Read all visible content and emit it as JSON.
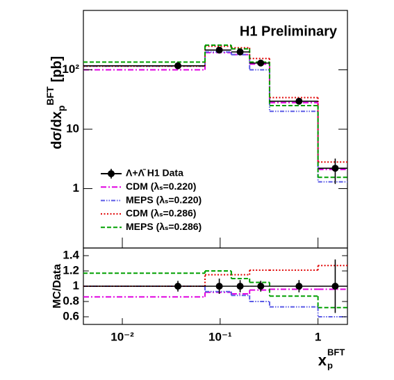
{
  "chart_data": [
    {
      "type": "step",
      "annotation": "H1 Preliminary",
      "ylabel": {
        "main": "dσ/dx",
        "sub": "p",
        "sup": "BFT",
        "unit": "[pb]"
      },
      "xscale": "log",
      "yscale": "log",
      "xlim": [
        0.004,
        2
      ],
      "ylim": [
        0.1,
        1000
      ],
      "yticks": [
        1,
        10,
        {
          "value": 100,
          "label": "10²"
        }
      ],
      "bins": [
        0.004,
        0.07,
        0.13,
        0.2,
        0.32,
        1,
        2
      ],
      "x": [
        0.037,
        0.098,
        0.16,
        0.26,
        0.64,
        1.5
      ],
      "legend": "lower left",
      "series": [
        {
          "name": "Λ+Λ̄ H1 Data",
          "color": "#000000",
          "style": "data",
          "values": [
            117,
            215,
            200,
            130,
            29.6,
            2.2
          ],
          "errors": [
            8,
            25,
            20,
            12,
            3,
            1
          ]
        },
        {
          "name": "CDM (λₛ=0.220)",
          "color": "#e000e0",
          "style": "dashdot",
          "values": [
            100,
            195,
            180,
            125,
            28,
            2.1
          ]
        },
        {
          "name": "MEPS (λₛ=0.220)",
          "color": "#5a5ae6",
          "style": "dashdotdot",
          "values": [
            115,
            200,
            180,
            100,
            20,
            1.3
          ]
        },
        {
          "name": "CDM (λₛ=0.286)",
          "color": "#e00000",
          "style": "dotted",
          "values": [
            115,
            250,
            235,
            155,
            34,
            2.8
          ]
        },
        {
          "name": "MEPS (λₛ=0.286)",
          "color": "#00a000",
          "style": "dashed",
          "values": [
            135,
            260,
            225,
            135,
            25,
            1.55
          ]
        }
      ]
    },
    {
      "type": "step",
      "ylabel": "MC/Data",
      "xlabel": {
        "main": "x",
        "sub": "p",
        "sup": "BFT"
      },
      "xscale": "log",
      "xlim": [
        0.004,
        2
      ],
      "ylim": [
        0.5,
        1.5
      ],
      "xticks": [
        {
          "value": 0.01,
          "label": "10⁻²"
        },
        {
          "value": 0.1,
          "label": "10⁻¹"
        },
        1
      ],
      "yticks": [
        0.6,
        0.8,
        1,
        1.2,
        1.4
      ],
      "bins": [
        0.004,
        0.07,
        0.13,
        0.2,
        0.32,
        1,
        2
      ],
      "x": [
        0.037,
        0.098,
        0.16,
        0.26,
        0.64,
        1.5
      ],
      "series": [
        {
          "color": "#000000",
          "style": "data",
          "values": [
            1,
            1,
            1,
            1,
            1,
            1
          ],
          "errors": [
            0.07,
            0.1,
            0.08,
            0.07,
            0.08,
            0.35
          ]
        },
        {
          "color": "#e000e0",
          "style": "dashdot",
          "values": [
            0.86,
            0.92,
            0.9,
            0.95,
            0.96,
            0.96
          ]
        },
        {
          "color": "#5a5ae6",
          "style": "dashdotdot",
          "values": [
            1.0,
            0.93,
            0.88,
            0.8,
            0.73,
            0.6
          ]
        },
        {
          "color": "#e00000",
          "style": "dotted",
          "values": [
            1.0,
            1.15,
            1.15,
            1.21,
            1.21,
            1.27
          ]
        },
        {
          "color": "#00a000",
          "style": "dashed",
          "values": [
            1.17,
            1.2,
            1.1,
            1.05,
            0.87,
            0.72
          ]
        }
      ]
    }
  ]
}
